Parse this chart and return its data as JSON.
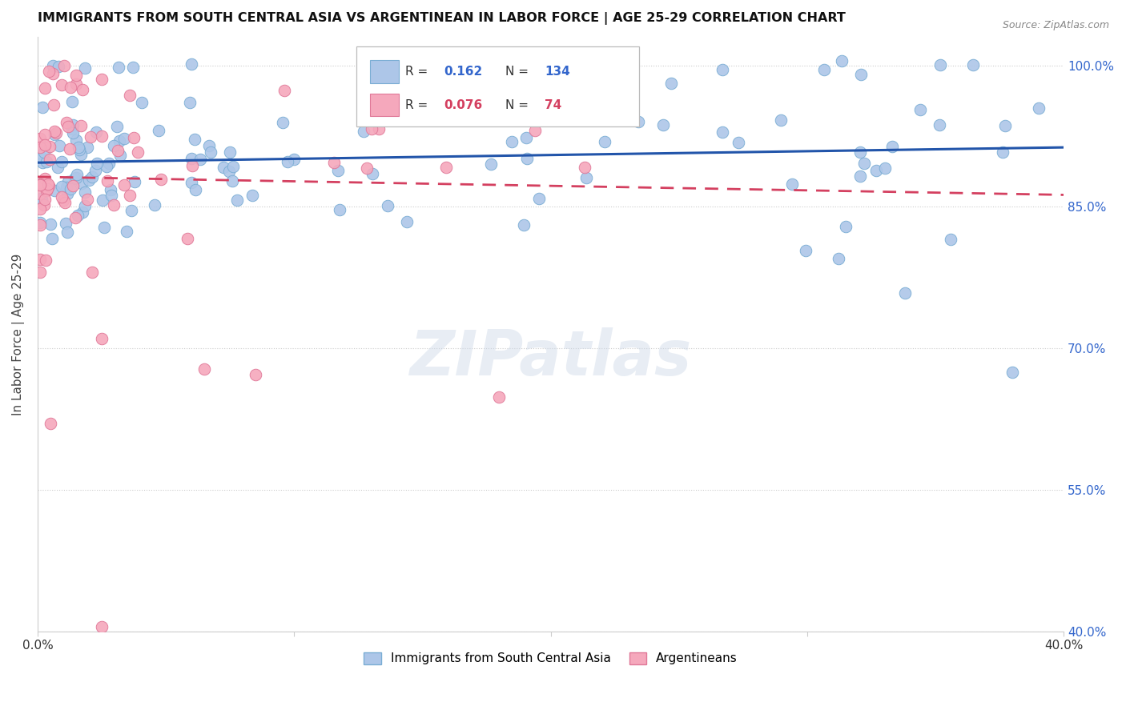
{
  "title": "IMMIGRANTS FROM SOUTH CENTRAL ASIA VS ARGENTINEAN IN LABOR FORCE | AGE 25-29 CORRELATION CHART",
  "source": "Source: ZipAtlas.com",
  "ylabel": "In Labor Force | Age 25-29",
  "xlim": [
    0.0,
    0.4
  ],
  "ylim": [
    0.4,
    1.03
  ],
  "yticks": [
    0.4,
    0.55,
    0.7,
    0.85,
    1.0
  ],
  "xticks": [
    0.0,
    0.1,
    0.2,
    0.3,
    0.4
  ],
  "xtick_labels": [
    "0.0%",
    "",
    "",
    "",
    "40.0%"
  ],
  "blue_R": 0.162,
  "blue_N": 134,
  "pink_R": 0.076,
  "pink_N": 74,
  "blue_color": "#adc6e8",
  "blue_edge_color": "#7aadd4",
  "blue_line_color": "#2255aa",
  "pink_color": "#f5a8bc",
  "pink_edge_color": "#e07898",
  "pink_line_color": "#d44060",
  "legend_blue_label": "Immigrants from South Central Asia",
  "legend_pink_label": "Argentineans",
  "watermark": "ZIPatlas",
  "bg_color": "#ffffff",
  "grid_color": "#cccccc",
  "right_tick_color": "#3366cc",
  "title_color": "#111111",
  "source_color": "#888888",
  "ylabel_color": "#444444"
}
